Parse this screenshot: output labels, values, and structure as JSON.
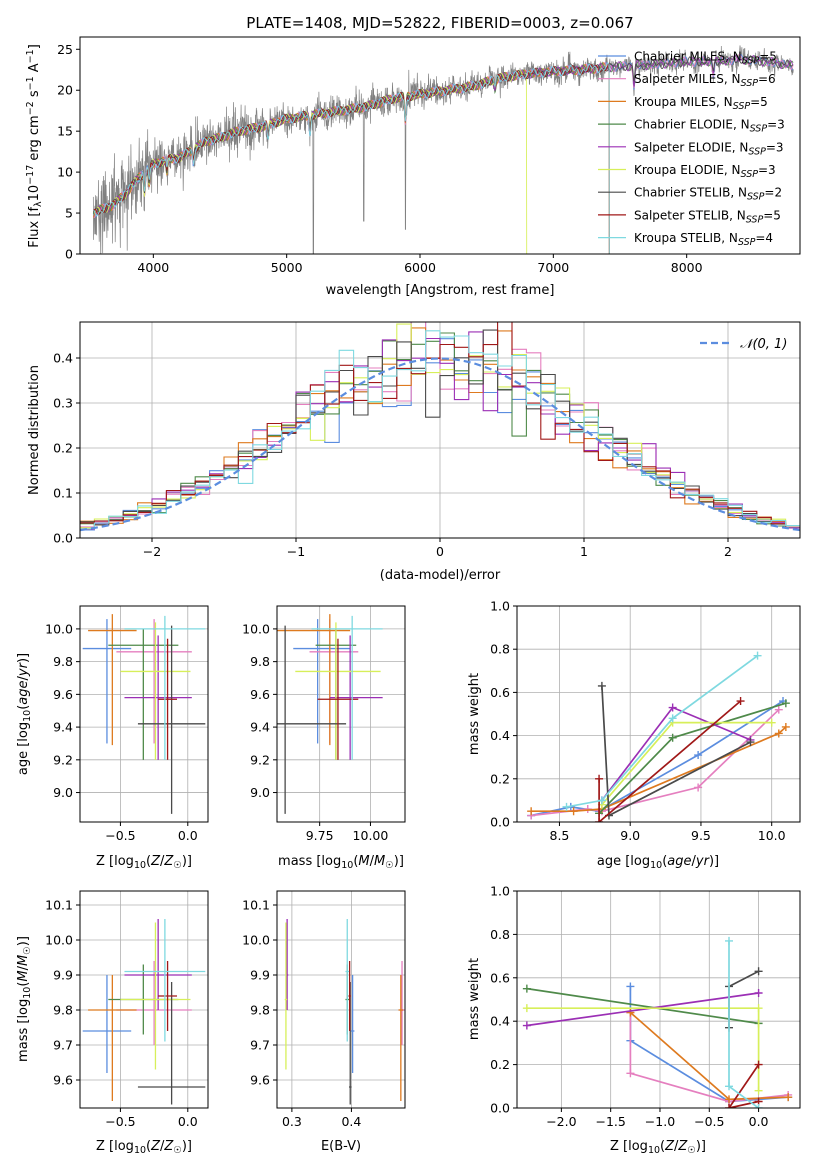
{
  "figure": {
    "title": "PLATE=1408, MJD=52822, FIBERID=0003, z=0.067"
  },
  "colors": {
    "Chabrier MILES": "#5b8ddf",
    "Salpeter MILES": "#e57fbf",
    "Kroupa MILES": "#de7a1f",
    "Chabrier ELODIE": "#4f8a4a",
    "Salpeter ELODIE": "#9b2fb5",
    "Kroupa ELODIE": "#d7ef5a",
    "Chabrier STELIB": "#4a4a4a",
    "Salpeter STELIB": "#a01818",
    "Kroupa STELIB": "#7fd9e0",
    "data": "#808080",
    "normal": "#5b8ddf"
  },
  "chart_data": [
    {
      "id": "spectrum",
      "type": "line",
      "title": "PLATE=1408, MJD=52822, FIBERID=0003, z=0.067",
      "xlabel": "wavelength [Angstrom, rest frame]",
      "ylabel": "Flux [f",
      "ylabel_full": "Flux [fλ10⁻¹⁷ erg cm⁻² s⁻¹ A⁻¹]",
      "xlim": [
        3450,
        8850
      ],
      "ylim": [
        0,
        26.5
      ],
      "xticks": [
        4000,
        5000,
        6000,
        7000,
        8000
      ],
      "yticks": [
        0,
        5,
        10,
        15,
        20,
        25
      ],
      "grid": false,
      "legend_position": "right",
      "legend": [
        "Chabrier MILES, N_SSP=5",
        "Salpeter MILES, N_SSP=6",
        "Kroupa MILES, N_SSP=5",
        "Chabrier ELODIE, N_SSP=3",
        "Salpeter ELODIE, N_SSP=3",
        "Kroupa ELODIE, N_SSP=3",
        "Chabrier STELIB, N_SSP=2",
        "Salpeter STELIB, N_SSP=5",
        "Kroupa STELIB, N_SSP=4"
      ],
      "legend_base": [
        "Chabrier MILES, N",
        "Salpeter MILES, N",
        "Kroupa MILES, N",
        "Chabrier ELODIE, N",
        "Salpeter ELODIE, N",
        "Kroupa ELODIE, N",
        "Chabrier STELIB, N",
        "Salpeter STELIB, N",
        "Kroupa STELIB, N"
      ],
      "legend_n": [
        "5",
        "6",
        "5",
        "3",
        "3",
        "3",
        "2",
        "5",
        "4"
      ],
      "continuum": {
        "wavelength": [
          3550,
          3700,
          3800,
          3900,
          4000,
          4100,
          4200,
          4300,
          4400,
          4500,
          4600,
          4700,
          4800,
          4900,
          5000,
          5200,
          5400,
          5600,
          5800,
          6000,
          6200,
          6400,
          6600,
          6800,
          7000,
          7200,
          7400,
          7600,
          7800,
          8000,
          8200,
          8400,
          8600,
          8800
        ],
        "flux": [
          5.0,
          6.0,
          7.5,
          9.5,
          11.0,
          11.5,
          11.8,
          12.8,
          13.8,
          14.2,
          14.8,
          15.2,
          15.5,
          16.0,
          16.5,
          17.0,
          17.5,
          18.0,
          19.0,
          19.5,
          20.0,
          20.5,
          21.5,
          22.0,
          22.3,
          22.5,
          22.8,
          23.0,
          23.2,
          23.5,
          23.5,
          23.8,
          23.5,
          23.0
        ]
      },
      "model_cutoffs": {
        "Kroupa ELODIE": 6800,
        "Salpeter STELIB": 7420,
        "Kroupa MILES": 7420,
        "Kroupa STELIB": 7420
      }
    },
    {
      "id": "residuals",
      "type": "step-histogram",
      "xlabel": "(data-model)/error",
      "ylabel": "Normed distribution",
      "xlim": [
        -2.5,
        2.5
      ],
      "ylim": [
        0,
        0.48
      ],
      "xticks": [
        -2,
        -1,
        0,
        1,
        2
      ],
      "yticks": [
        0.0,
        0.1,
        0.2,
        0.3,
        0.4
      ],
      "grid": true,
      "legend_position": "top-right",
      "legend": [
        "𝒩(0, 1)"
      ],
      "bin_width": 0.1
    },
    {
      "id": "age-vs-Z",
      "type": "errorbar",
      "xlabel": "Z [log10(Z/Z☉)]",
      "ylabel": "age  [log10(age/yr)]",
      "xlim": [
        -0.8,
        0.15
      ],
      "ylim": [
        8.82,
        10.14
      ],
      "xticks": [
        -0.5,
        0.0
      ],
      "yticks": [
        9.0,
        9.2,
        9.4,
        9.6,
        9.8,
        10.0
      ],
      "grid": true
    },
    {
      "id": "age-vs-mass",
      "type": "errorbar",
      "xlabel": "mass [log10(M/M☉)]",
      "ylabel": "",
      "xlim": [
        9.54,
        10.17
      ],
      "ylim": [
        8.82,
        10.14
      ],
      "xticks": [
        9.75,
        10.0
      ],
      "yticks": [
        9.0,
        9.2,
        9.4,
        9.6,
        9.8,
        10.0
      ],
      "grid": true
    },
    {
      "id": "weight-vs-age",
      "type": "line",
      "xlabel": "age  [log10(age/yr)]",
      "ylabel": "mass weight",
      "xlim": [
        8.2,
        10.2
      ],
      "ylim": [
        0,
        1.0
      ],
      "xticks": [
        8.5,
        9.0,
        9.5,
        10.0
      ],
      "yticks": [
        0.0,
        0.2,
        0.4,
        0.6,
        0.8,
        1.0
      ],
      "grid": true
    },
    {
      "id": "mass-vs-Z",
      "type": "errorbar",
      "xlabel": "Z [log10(Z/Z☉)]",
      "ylabel": "mass [log10(M/M☉)]",
      "xlim": [
        -0.8,
        0.15
      ],
      "ylim": [
        9.52,
        10.14
      ],
      "xticks": [
        -0.5,
        0.0
      ],
      "yticks": [
        9.6,
        9.7,
        9.8,
        9.9,
        10.0,
        10.1
      ],
      "grid": true
    },
    {
      "id": "mass-vs-ebv",
      "type": "errorbar",
      "xlabel": "E(B-V)",
      "ylabel": "",
      "xlim": [
        0.275,
        0.49
      ],
      "ylim": [
        9.52,
        10.14
      ],
      "xticks": [
        0.3,
        0.4
      ],
      "yticks": [
        9.6,
        9.7,
        9.8,
        9.9,
        10.0,
        10.1
      ],
      "grid": true
    },
    {
      "id": "weight-vs-Z",
      "type": "line",
      "xlabel": "Z [log10(Z/Z☉)]",
      "ylabel": "mass weight",
      "xlim": [
        -2.45,
        0.42
      ],
      "ylim": [
        0,
        1.0
      ],
      "xticks": [
        -2.0,
        -1.5,
        -1.0,
        -0.5,
        0.0
      ],
      "yticks": [
        0.0,
        0.2,
        0.4,
        0.6,
        0.8,
        1.0
      ],
      "grid": true
    }
  ],
  "models": [
    {
      "name": "Chabrier MILES",
      "Z": -0.6,
      "Zerr": 0.18,
      "age": 9.88,
      "ageerr": [
        0.58,
        0.18
      ],
      "mass": 9.74,
      "masserr": [
        0.12,
        0.16
      ],
      "ebv": 0.402,
      "ebverr": 0.003,
      "weight_age": {
        "age": [
          8.3,
          8.58,
          8.78,
          9.48,
          10.08
        ],
        "w": [
          0.03,
          0.07,
          0.05,
          0.31,
          0.56
        ]
      },
      "weight_Z": {
        "Z": [
          0.3,
          -0.3,
          -1.3,
          -1.3
        ],
        "w": [
          0.05,
          0.03,
          0.31,
          0.56
        ]
      }
    },
    {
      "name": "Salpeter MILES",
      "Z": -0.25,
      "Zerr": 0.28,
      "age": 9.86,
      "ageerr": [
        0.56,
        0.2
      ],
      "mass": 9.8,
      "masserr": [
        0.1,
        0.14
      ],
      "ebv": 0.485,
      "ebverr": 0.004,
      "weight_age": {
        "age": [
          8.3,
          8.7,
          8.8,
          9.48,
          10.05
        ],
        "w": [
          0.03,
          0.06,
          0.05,
          0.16,
          0.52
        ]
      },
      "weight_Z": {
        "Z": [
          0.3,
          -0.3,
          -1.3,
          -1.3
        ],
        "w": [
          0.06,
          0.03,
          0.16,
          0.44
        ]
      }
    },
    {
      "name": "Kroupa MILES",
      "Z": -0.56,
      "Zerr": 0.18,
      "age": 9.99,
      "ageerr": [
        0.7,
        0.1
      ],
      "mass": 9.8,
      "masserr": [
        0.26,
        0.1
      ],
      "ebv": 0.483,
      "ebverr": 0.004,
      "weight_age": {
        "age": [
          8.3,
          8.6,
          8.8,
          10.05,
          10.1
        ],
        "w": [
          0.05,
          0.05,
          0.06,
          0.41,
          0.44
        ]
      },
      "weight_Z": {
        "Z": [
          0.3,
          -0.3,
          -1.3
        ],
        "w": [
          0.05,
          0.04,
          0.44
        ]
      }
    },
    {
      "name": "Chabrier ELODIE",
      "Z": -0.33,
      "Zerr": 0.26,
      "age": 9.9,
      "ageerr": [
        0.7,
        0.1
      ],
      "mass": 9.83,
      "masserr": [
        0.1,
        0.1
      ],
      "ebv": 0.393,
      "ebverr": 0.003,
      "weight_age": {
        "age": [
          8.78,
          9.3,
          10.1
        ],
        "w": [
          0.04,
          0.39,
          0.55
        ]
      },
      "weight_Z": {
        "Z": [
          -2.35,
          0.0
        ],
        "w": [
          0.55,
          0.39
        ]
      }
    },
    {
      "name": "Salpeter ELODIE",
      "Z": -0.22,
      "Zerr": 0.25,
      "age": 9.58,
      "ageerr": [
        0.38,
        0.38
      ],
      "mass": 9.9,
      "masserr": [
        0.1,
        0.16
      ],
      "ebv": 0.292,
      "ebverr": 0.002,
      "weight_age": {
        "age": [
          8.8,
          9.3,
          9.85
        ],
        "w": [
          0.1,
          0.53,
          0.38
        ]
      },
      "weight_Z": {
        "Z": [
          -2.35,
          0.0
        ],
        "w": [
          0.38,
          0.53
        ]
      }
    },
    {
      "name": "Kroupa ELODIE",
      "Z": -0.24,
      "Zerr": 0.26,
      "age": 9.74,
      "ageerr": [
        0.54,
        0.3
      ],
      "mass": 9.83,
      "masserr": [
        0.2,
        0.22
      ],
      "ebv": 0.29,
      "ebverr": 0.002,
      "weight_age": {
        "age": [
          8.8,
          9.3,
          10.0
        ],
        "w": [
          0.08,
          0.46,
          0.46
        ]
      },
      "weight_Z": {
        "Z": [
          -2.35,
          0.0,
          0.0
        ],
        "w": [
          0.46,
          0.46,
          0.08
        ]
      }
    },
    {
      "name": "Chabrier STELIB",
      "Z": -0.12,
      "Zerr": 0.25,
      "age": 9.42,
      "ageerr": [
        0.55,
        0.6
      ],
      "mass": 9.58,
      "masserr": [
        0.05,
        0.3
      ],
      "ebv": 0.398,
      "ebverr": 0.002,
      "weight_age": {
        "age": [
          8.8,
          8.85,
          9.85
        ],
        "w": [
          0.63,
          0.03,
          0.37
        ]
      },
      "weight_Z": {
        "Z": [
          -0.3,
          -0.3,
          0.0
        ],
        "w": [
          0.37,
          0.56,
          0.63
        ]
      }
    },
    {
      "name": "Salpeter STELIB",
      "Z": -0.15,
      "Zerr": 0.07,
      "age": 9.57,
      "ageerr": [
        0.37,
        0.37
      ],
      "mass": 9.84,
      "masserr": [
        0.1,
        0.1
      ],
      "ebv": 0.397,
      "ebverr": 0.002,
      "weight_age": {
        "age": [
          8.78,
          8.78,
          9.78
        ],
        "w": [
          0.2,
          0.0,
          0.56
        ]
      },
      "weight_Z": {
        "Z": [
          0.0,
          -0.3,
          0.0
        ],
        "w": [
          0.2,
          0.0,
          0.03
        ]
      }
    },
    {
      "name": "Kroupa STELIB",
      "Z": -0.17,
      "Zerr": 0.3,
      "age": 10.0,
      "ageerr": [
        0.8,
        0.08
      ],
      "mass": 9.91,
      "masserr": [
        0.2,
        0.15
      ],
      "ebv": 0.393,
      "ebverr": 0.003,
      "weight_age": {
        "age": [
          8.55,
          8.8,
          9.3,
          9.9
        ],
        "w": [
          0.07,
          0.1,
          0.48,
          0.77
        ]
      },
      "weight_Z": {
        "Z": [
          -0.3,
          -0.3,
          0.0
        ],
        "w": [
          0.77,
          0.1,
          0.0
        ]
      }
    }
  ]
}
